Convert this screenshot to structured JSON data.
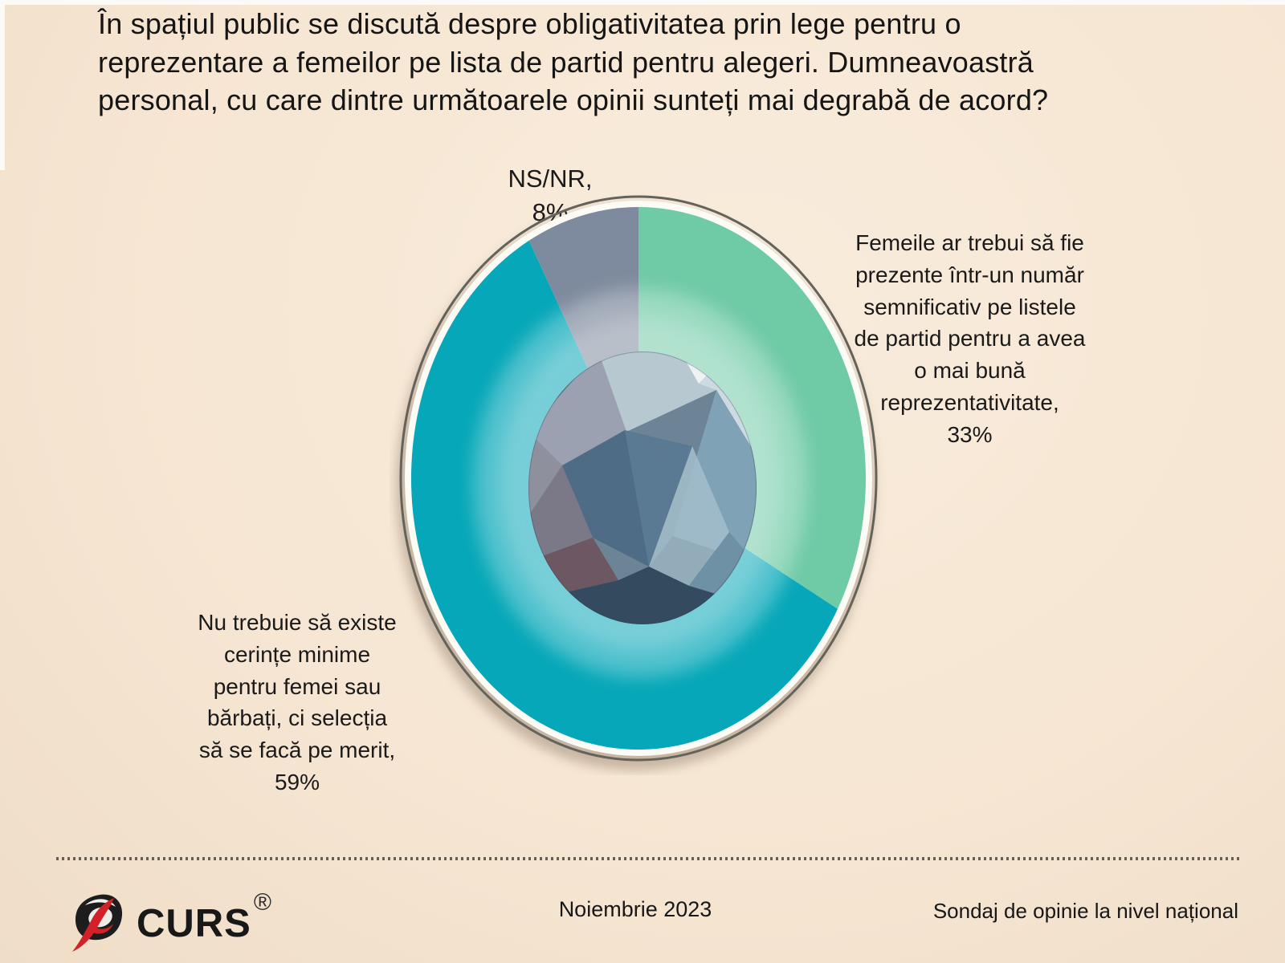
{
  "page": {
    "background": "#f6e6d3",
    "title": "În spațiul public se discută despre obligativitatea prin lege pentru o\nreprezentare a femeilor pe lista de partid pentru alegeri.  Dumneavoastră\npersonal, cu care dintre următoarele opinii sunteți mai degrabă de acord?"
  },
  "chart_data": {
    "type": "pie",
    "title": "În spațiul public se discută despre obligativitatea prin lege pentru o reprezentare a femeilor pe lista de partid pentru alegeri. Dumneavoastră personal, cu care dintre următoarele opinii sunteți mai degrabă de acord?",
    "start_angle": "12 o'clock, clockwise",
    "legend_position": "callouts around pie",
    "slices": [
      {
        "id": "femeile",
        "label": "Femeile ar trebui să fie prezente într-un număr semnificativ pe listele de partid pentru a avea o mai bună reprezentativitate",
        "value": 33,
        "color": "#6fcaa6"
      },
      {
        "id": "merit",
        "label": "Nu trebuie să existe cerințe minime pentru femei sau bărbați, ci selecția să se facă pe merit",
        "value": 59,
        "color": "#05a7b8"
      },
      {
        "id": "nsnr",
        "label": "NS/NR",
        "value": 8,
        "color": "#7e8a9d"
      }
    ]
  },
  "callouts": {
    "nsnr": "NS/NR,\n8%",
    "femeile": "Femeile ar trebui să fie\nprezente într-un număr\nsemnificativ pe listele\nde partid pentru a avea\no mai bună\nreprezentativitate,\n33%",
    "merit": "Nu trebuie să existe\ncerințe minime\npentru femei sau\nbărbați, ci selecția\nsă se facă pe merit,\n59%"
  },
  "footer": {
    "brand": "CURS",
    "registered": "®",
    "date": "Noiembrie 2023",
    "note": "Sondaj de opinie la nivel național"
  }
}
